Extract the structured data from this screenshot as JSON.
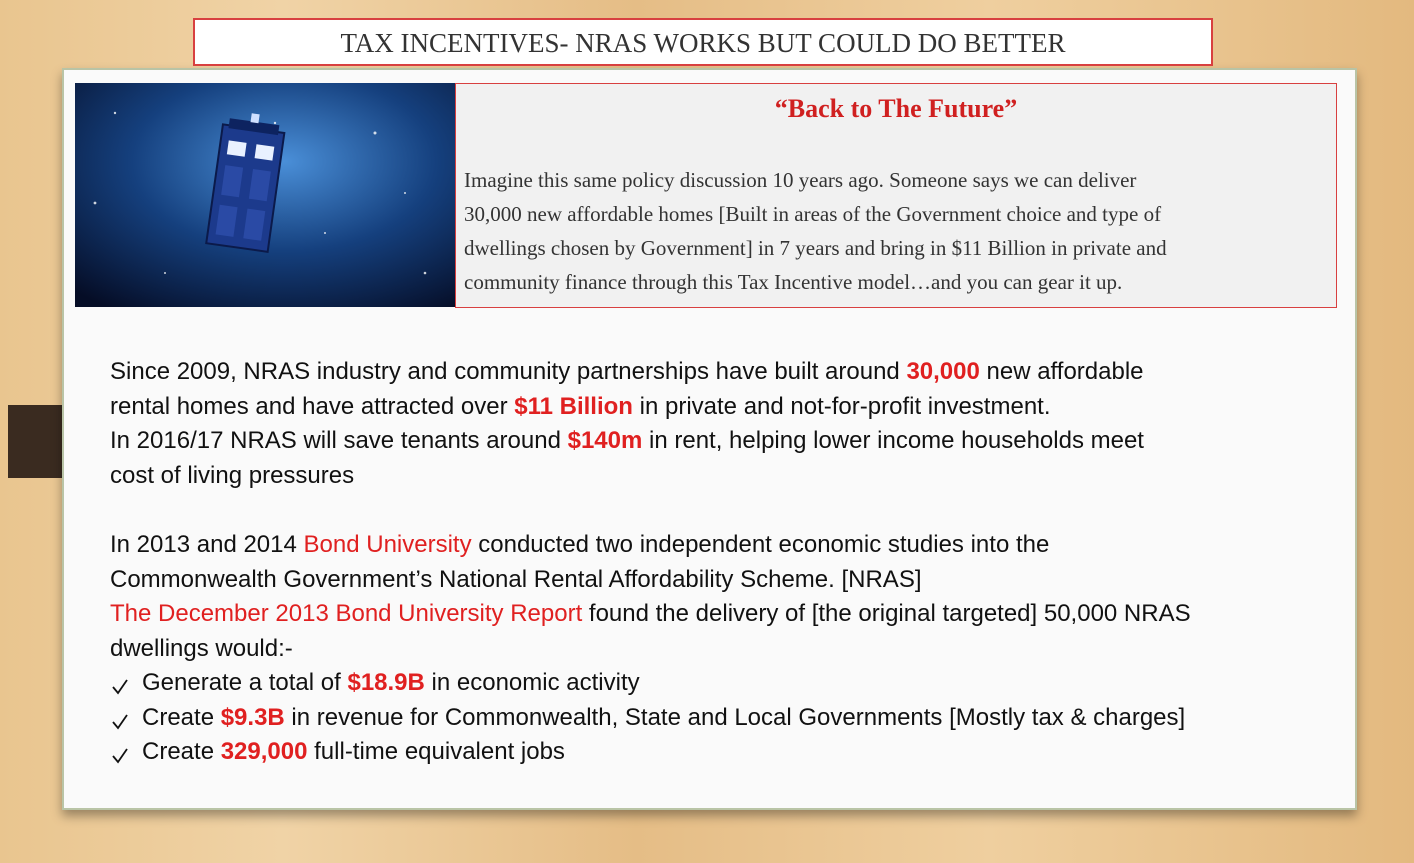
{
  "title": "TAX INCENTIVES- NRAS WORKS BUT COULD DO BETTER",
  "callout": {
    "heading": "“Back to The Future”",
    "lines": [
      "Imagine this same policy discussion 10 years ago. Someone says we can deliver",
      "30,000 new affordable homes [Built in areas of the Government choice and type of",
      "dwellings chosen by Government] in 7 years and bring in $11 Billion in private and",
      "community finance through this Tax Incentive model…and you can gear it up."
    ]
  },
  "summary": [
    [
      "Since 2009, NRAS industry and community partnerships have built around ",
      {
        "text": "30,000",
        "color": "#e02020",
        "bold": true
      },
      " new affordable"
    ],
    [
      "rental homes and have attracted over ",
      {
        "text": "$11 Billion",
        "color": "#e02020",
        "bold": true
      },
      " in private and not-for-profit investment."
    ],
    [
      "In 2016/17 NRAS will save tenants around ",
      {
        "text": "$140m",
        "color": "#e02020",
        "bold": true
      },
      " in rent, helping lower income households meet"
    ],
    [
      "cost of living pressures"
    ]
  ],
  "studies": [
    [
      "In 2013 and 2014 ",
      {
        "text": "Bond University",
        "color": "#e02020",
        "bold": false
      },
      " conducted two independent economic studies into the"
    ],
    [
      "Commonwealth Government’s National Rental Affordability Scheme. [NRAS]"
    ],
    [
      {
        "text": "The December 2013 Bond University Report",
        "color": "#e02020",
        "bold": false
      },
      " found the delivery of [the original targeted] 50,000 NRAS"
    ],
    [
      "dwellings would:-"
    ]
  ],
  "bullets": [
    [
      "Generate a total of ",
      {
        "text": "$18.9B",
        "color": "#e02020",
        "bold": true
      },
      " in economic activity"
    ],
    [
      "Create ",
      {
        "text": "$9.3B",
        "color": "#e02020",
        "bold": true
      },
      " in revenue for Commonwealth, State and Local Governments [Mostly tax & charges]"
    ],
    [
      "Create ",
      {
        "text": "329,000",
        "color": "#e02020",
        "bold": true
      },
      " full-time equivalent jobs"
    ]
  ]
}
